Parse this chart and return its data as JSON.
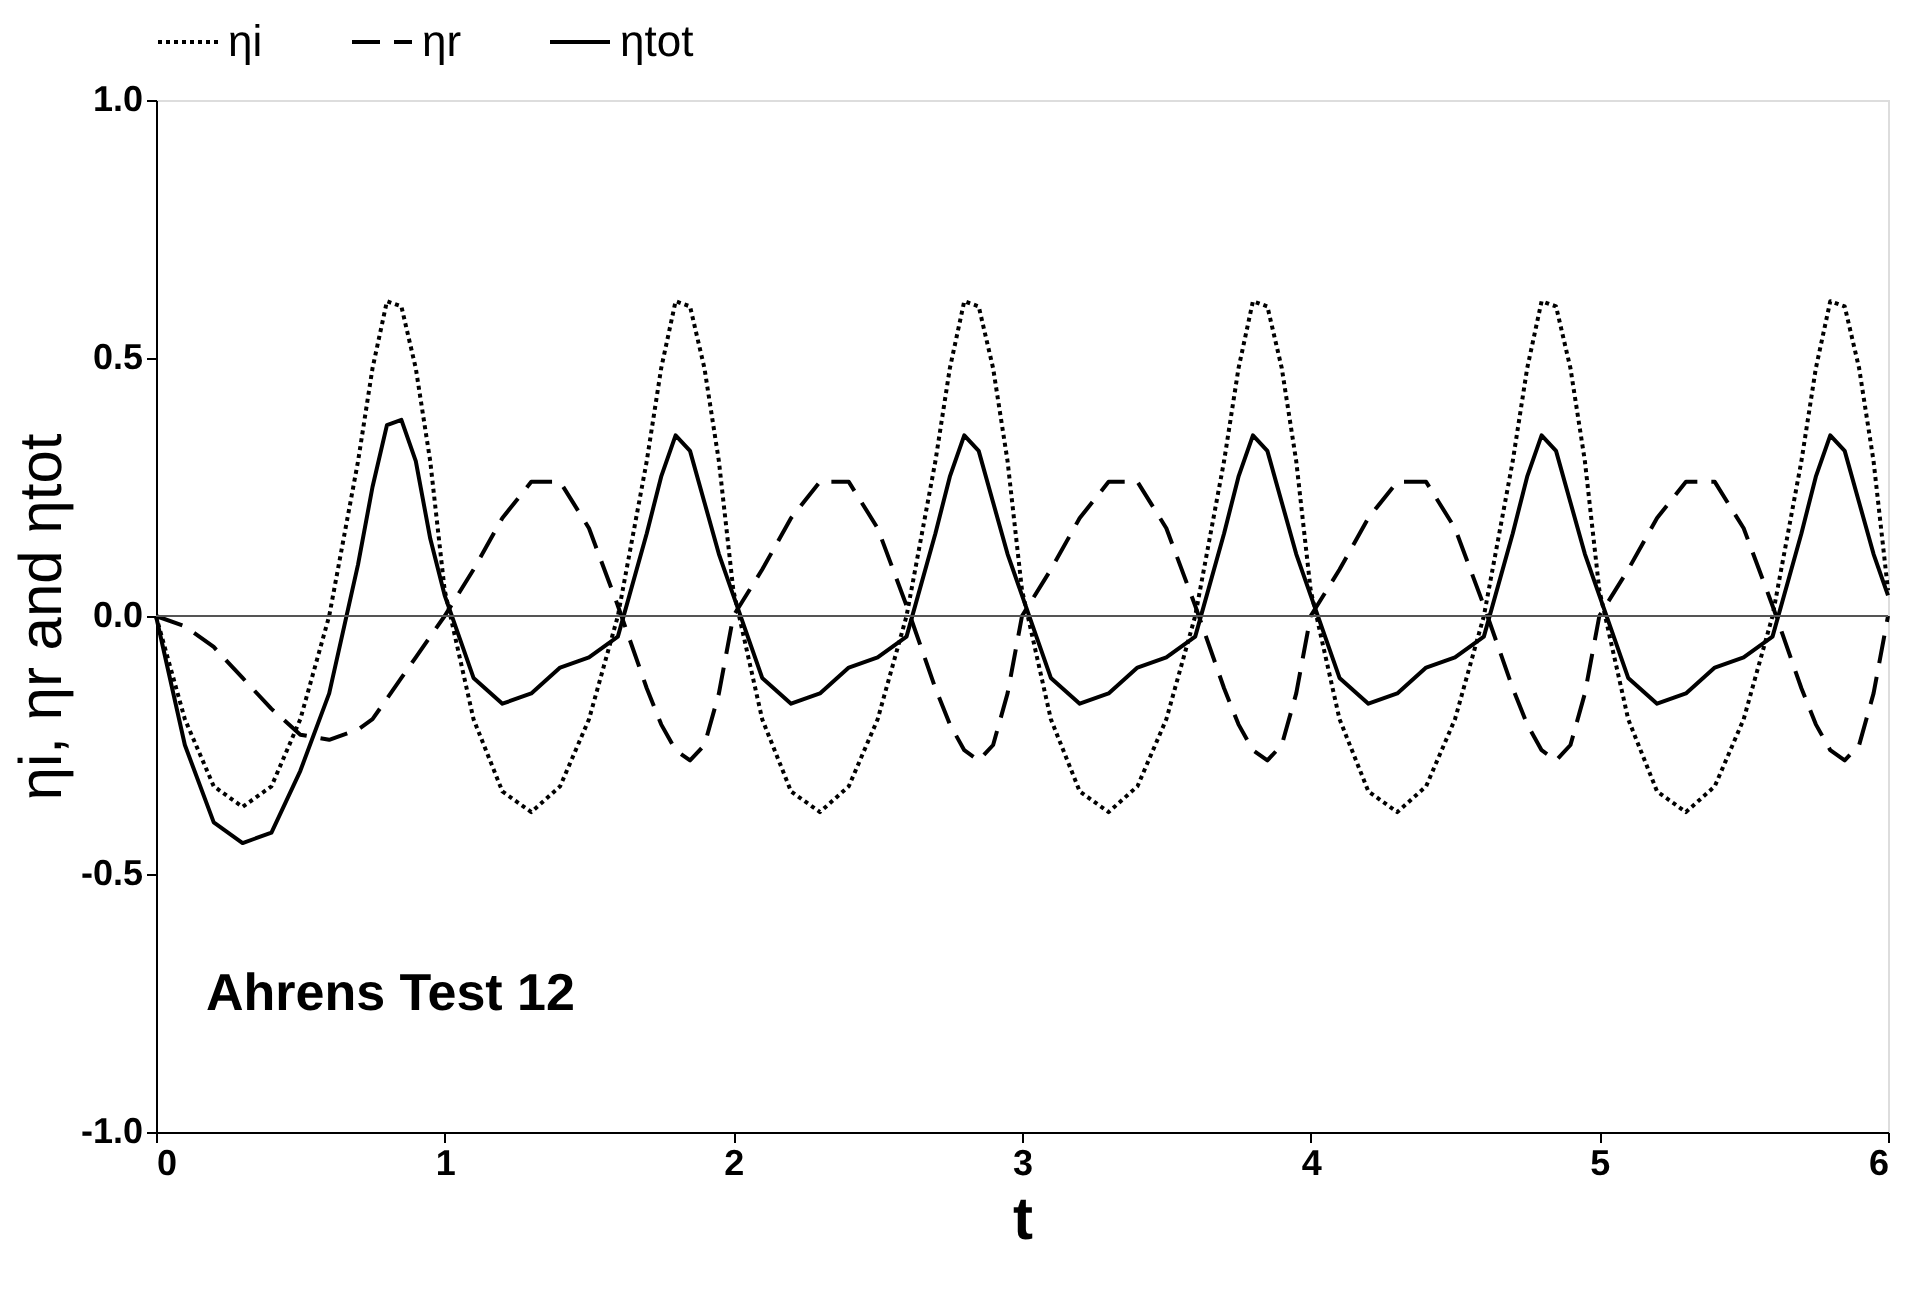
{
  "chart_data": {
    "type": "line",
    "xlabel": "t",
    "ylabel": "ηi, ηr and ηtot",
    "x": [
      0,
      0.1,
      0.2,
      0.3,
      0.4,
      0.5,
      0.6,
      0.7,
      0.75,
      0.8,
      0.85,
      0.9,
      0.95,
      1,
      1.1,
      1.2,
      1.3,
      1.4,
      1.5,
      1.6,
      1.7,
      1.75,
      1.8,
      1.85,
      1.9,
      1.95,
      2,
      2.1,
      2.2,
      2.3,
      2.4,
      2.5,
      2.6,
      2.7,
      2.75,
      2.8,
      2.85,
      2.9,
      2.95,
      3,
      3.1,
      3.2,
      3.3,
      3.4,
      3.5,
      3.6,
      3.7,
      3.75,
      3.8,
      3.85,
      3.9,
      3.95,
      4,
      4.1,
      4.2,
      4.3,
      4.4,
      4.5,
      4.6,
      4.7,
      4.75,
      4.8,
      4.85,
      4.9,
      4.95,
      5,
      5.1,
      5.2,
      5.3,
      5.4,
      5.5,
      5.6,
      5.7,
      5.75,
      5.8,
      5.85,
      5.9,
      5.95,
      6
    ],
    "series": [
      {
        "name": "ηi",
        "color": "#000000",
        "line_style": "dotted",
        "values": [
          0,
          -0.2,
          -0.33,
          -0.37,
          -0.33,
          -0.2,
          0,
          0.3,
          0.48,
          0.61,
          0.6,
          0.48,
          0.3,
          0.05,
          -0.2,
          -0.34,
          -0.38,
          -0.33,
          -0.2,
          0,
          0.3,
          0.48,
          0.61,
          0.6,
          0.48,
          0.3,
          0.05,
          -0.2,
          -0.34,
          -0.38,
          -0.33,
          -0.2,
          0,
          0.3,
          0.48,
          0.61,
          0.6,
          0.48,
          0.3,
          0.05,
          -0.2,
          -0.34,
          -0.38,
          -0.33,
          -0.2,
          0,
          0.3,
          0.48,
          0.61,
          0.6,
          0.48,
          0.3,
          0.05,
          -0.2,
          -0.34,
          -0.38,
          -0.33,
          -0.2,
          0,
          0.3,
          0.48,
          0.61,
          0.6,
          0.48,
          0.3,
          0.05,
          -0.2,
          -0.34,
          -0.38,
          -0.33,
          -0.2,
          0,
          0.3,
          0.48,
          0.61,
          0.6,
          0.48,
          0.3,
          0.05
        ]
      },
      {
        "name": "ηr",
        "color": "#000000",
        "line_style": "dashed",
        "values": [
          0,
          -0.02,
          -0.06,
          -0.12,
          -0.18,
          -0.23,
          -0.24,
          -0.22,
          -0.2,
          -0.16,
          -0.12,
          -0.08,
          -0.04,
          0,
          0.09,
          0.19,
          0.26,
          0.26,
          0.17,
          0.02,
          -0.14,
          -0.21,
          -0.26,
          -0.28,
          -0.25,
          -0.15,
          0,
          0.09,
          0.19,
          0.26,
          0.26,
          0.17,
          0.02,
          -0.14,
          -0.21,
          -0.26,
          -0.28,
          -0.25,
          -0.15,
          0,
          0.09,
          0.19,
          0.26,
          0.26,
          0.17,
          0.02,
          -0.14,
          -0.21,
          -0.26,
          -0.28,
          -0.25,
          -0.15,
          0,
          0.09,
          0.19,
          0.26,
          0.26,
          0.17,
          0.02,
          -0.14,
          -0.21,
          -0.26,
          -0.28,
          -0.25,
          -0.15,
          0,
          0.09,
          0.19,
          0.26,
          0.26,
          0.17,
          0.02,
          -0.14,
          -0.21,
          -0.26,
          -0.28,
          -0.25,
          -0.15,
          0
        ]
      },
      {
        "name": "ηtot",
        "color": "#000000",
        "line_style": "solid",
        "values": [
          0,
          -0.25,
          -0.4,
          -0.44,
          -0.42,
          -0.3,
          -0.15,
          0.1,
          0.25,
          0.37,
          0.38,
          0.3,
          0.15,
          0.04,
          -0.12,
          -0.17,
          -0.15,
          -0.1,
          -0.08,
          -0.04,
          0.16,
          0.27,
          0.35,
          0.32,
          0.22,
          0.12,
          0.04,
          -0.12,
          -0.17,
          -0.15,
          -0.1,
          -0.08,
          -0.04,
          0.16,
          0.27,
          0.35,
          0.32,
          0.22,
          0.12,
          0.04,
          -0.12,
          -0.17,
          -0.15,
          -0.1,
          -0.08,
          -0.04,
          0.16,
          0.27,
          0.35,
          0.32,
          0.22,
          0.12,
          0.04,
          -0.12,
          -0.17,
          -0.15,
          -0.1,
          -0.08,
          -0.04,
          0.16,
          0.27,
          0.35,
          0.32,
          0.22,
          0.12,
          0.04,
          -0.12,
          -0.17,
          -0.15,
          -0.1,
          -0.08,
          -0.04,
          0.16,
          0.27,
          0.35,
          0.32,
          0.22,
          0.12,
          0.04
        ]
      }
    ],
    "xlim": [
      0,
      6
    ],
    "xticks": [
      0,
      1,
      2,
      3,
      4,
      5,
      6
    ],
    "ylim": [
      -1,
      1
    ],
    "yticks": [
      {
        "value": -1,
        "label": "-1.0"
      },
      {
        "value": -0.5,
        "label": "-0.5"
      },
      {
        "value": 0,
        "label": "0.0"
      },
      {
        "value": 0.5,
        "label": "0.5"
      },
      {
        "value": 1,
        "label": "1.0"
      }
    ],
    "ref_lines": [
      {
        "axis": "y",
        "value": 0,
        "label": null,
        "color": "#555555"
      }
    ],
    "annotations": [
      "Ahrens Test 12"
    ],
    "legend": "top",
    "grid": false,
    "marker": "none"
  }
}
